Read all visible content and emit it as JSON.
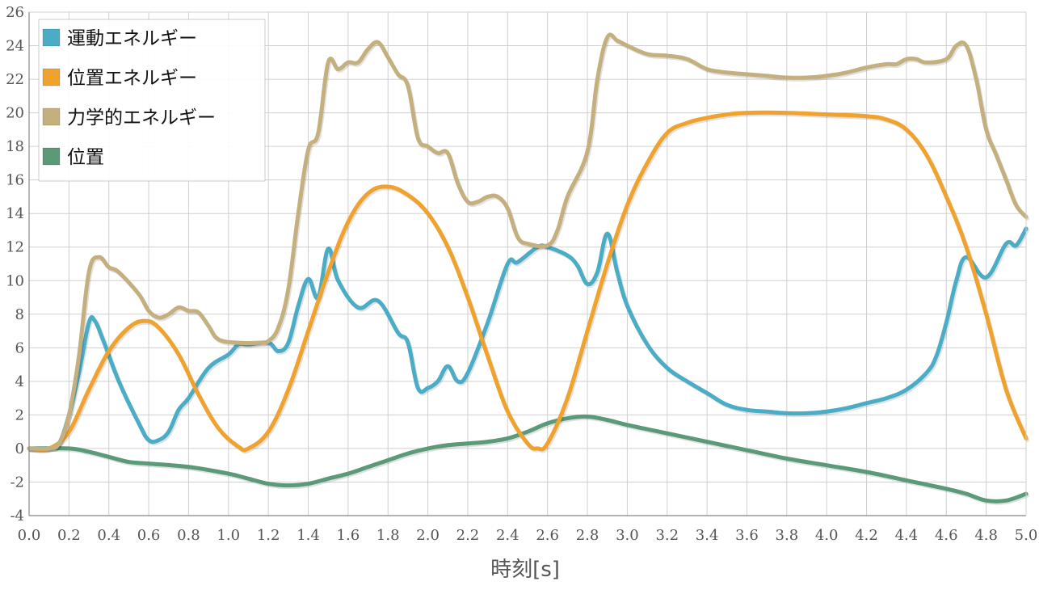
{
  "chart_data": {
    "type": "line",
    "title": "",
    "xlabel": "時刻[s]",
    "ylabel": "",
    "xlim": [
      0,
      5
    ],
    "ylim": [
      -4,
      26
    ],
    "x_ticks": [
      0.0,
      0.2,
      0.4,
      0.6,
      0.8,
      1.0,
      1.2,
      1.4,
      1.6,
      1.8,
      2.0,
      2.2,
      2.4,
      2.6,
      2.8,
      3.0,
      3.2,
      3.4,
      3.6,
      3.8,
      4.0,
      4.2,
      4.4,
      4.6,
      4.8,
      5.0
    ],
    "x_tick_labels": [
      "0.0",
      "0.2",
      "0.4",
      "0.6",
      "0.8",
      "1.0",
      "1.2",
      "1.4",
      "1.6",
      "1.8",
      "2.0",
      "2.2",
      "2.4",
      "2.6",
      "2.8",
      "3.0",
      "3.2",
      "3.4",
      "3.6",
      "3.8",
      "4.0",
      "4.2",
      "4.4",
      "4.6",
      "4.8",
      "5.0"
    ],
    "y_ticks": [
      -4,
      -2,
      0,
      2,
      4,
      6,
      8,
      10,
      12,
      14,
      16,
      18,
      20,
      22,
      24,
      26
    ],
    "y_tick_labels": [
      "-4",
      "-2",
      "0",
      "2",
      "4",
      "6",
      "8",
      "10",
      "12",
      "14",
      "16",
      "18",
      "20",
      "22",
      "24",
      "26"
    ],
    "grid": true,
    "legend_position": "top-left",
    "series": [
      {
        "name": "運動エネルギー",
        "color": "#4bacc6",
        "points": [
          [
            0,
            0
          ],
          [
            0.1,
            0
          ],
          [
            0.15,
            0.3
          ],
          [
            0.2,
            2
          ],
          [
            0.25,
            4.5
          ],
          [
            0.3,
            7.5
          ],
          [
            0.33,
            7.6
          ],
          [
            0.37,
            6.5
          ],
          [
            0.45,
            4
          ],
          [
            0.55,
            1.5
          ],
          [
            0.6,
            0.5
          ],
          [
            0.65,
            0.5
          ],
          [
            0.7,
            1
          ],
          [
            0.75,
            2.3
          ],
          [
            0.8,
            3
          ],
          [
            0.9,
            4.8
          ],
          [
            1.0,
            5.6
          ],
          [
            1.05,
            6.2
          ],
          [
            1.1,
            6.2
          ],
          [
            1.2,
            6.3
          ],
          [
            1.25,
            5.8
          ],
          [
            1.3,
            6.3
          ],
          [
            1.35,
            8.5
          ],
          [
            1.4,
            10.1
          ],
          [
            1.45,
            9
          ],
          [
            1.5,
            11.9
          ],
          [
            1.55,
            10
          ],
          [
            1.65,
            8.4
          ],
          [
            1.75,
            8.8
          ],
          [
            1.85,
            6.9
          ],
          [
            1.9,
            6.3
          ],
          [
            1.95,
            3.6
          ],
          [
            2.0,
            3.6
          ],
          [
            2.05,
            4
          ],
          [
            2.1,
            4.9
          ],
          [
            2.15,
            4
          ],
          [
            2.2,
            4.5
          ],
          [
            2.3,
            7.5
          ],
          [
            2.4,
            11
          ],
          [
            2.45,
            11.1
          ],
          [
            2.55,
            12
          ],
          [
            2.6,
            12
          ],
          [
            2.7,
            11.5
          ],
          [
            2.75,
            10.9
          ],
          [
            2.8,
            9.8
          ],
          [
            2.85,
            10.5
          ],
          [
            2.9,
            12.8
          ],
          [
            2.95,
            10.5
          ],
          [
            3.0,
            8.5
          ],
          [
            3.1,
            6.2
          ],
          [
            3.2,
            4.8
          ],
          [
            3.3,
            4
          ],
          [
            3.4,
            3.3
          ],
          [
            3.5,
            2.6
          ],
          [
            3.6,
            2.3
          ],
          [
            3.7,
            2.2
          ],
          [
            3.8,
            2.1
          ],
          [
            3.9,
            2.1
          ],
          [
            4.0,
            2.2
          ],
          [
            4.1,
            2.4
          ],
          [
            4.2,
            2.7
          ],
          [
            4.3,
            3
          ],
          [
            4.4,
            3.5
          ],
          [
            4.5,
            4.5
          ],
          [
            4.55,
            5.5
          ],
          [
            4.6,
            7.5
          ],
          [
            4.65,
            10
          ],
          [
            4.7,
            11.4
          ],
          [
            4.8,
            10.2
          ],
          [
            4.9,
            12.2
          ],
          [
            4.95,
            12.1
          ],
          [
            5.0,
            13.1
          ]
        ]
      },
      {
        "name": "位置エネルギー",
        "color": "#f0a22e",
        "points": [
          [
            0,
            0
          ],
          [
            0.1,
            0
          ],
          [
            0.2,
            1
          ],
          [
            0.3,
            3.5
          ],
          [
            0.4,
            5.8
          ],
          [
            0.5,
            7.2
          ],
          [
            0.58,
            7.6
          ],
          [
            0.65,
            7.2
          ],
          [
            0.75,
            5.6
          ],
          [
            0.85,
            3.2
          ],
          [
            0.95,
            1.2
          ],
          [
            1.05,
            0.1
          ],
          [
            1.1,
            0
          ],
          [
            1.2,
            1
          ],
          [
            1.3,
            3.5
          ],
          [
            1.4,
            7
          ],
          [
            1.5,
            10.5
          ],
          [
            1.6,
            13.5
          ],
          [
            1.7,
            15.2
          ],
          [
            1.8,
            15.6
          ],
          [
            1.9,
            15.1
          ],
          [
            2.0,
            14
          ],
          [
            2.1,
            12
          ],
          [
            2.2,
            9
          ],
          [
            2.3,
            5.5
          ],
          [
            2.4,
            2.2
          ],
          [
            2.5,
            0.3
          ],
          [
            2.55,
            0
          ],
          [
            2.6,
            0.3
          ],
          [
            2.7,
            3
          ],
          [
            2.8,
            7
          ],
          [
            2.9,
            11
          ],
          [
            3.0,
            14.5
          ],
          [
            3.1,
            17
          ],
          [
            3.2,
            18.8
          ],
          [
            3.3,
            19.4
          ],
          [
            3.4,
            19.7
          ],
          [
            3.5,
            19.9
          ],
          [
            3.6,
            20
          ],
          [
            3.8,
            20
          ],
          [
            4.0,
            19.9
          ],
          [
            4.2,
            19.8
          ],
          [
            4.3,
            19.6
          ],
          [
            4.4,
            19
          ],
          [
            4.5,
            17.5
          ],
          [
            4.6,
            15
          ],
          [
            4.7,
            12
          ],
          [
            4.8,
            8
          ],
          [
            4.9,
            3.5
          ],
          [
            5.0,
            0.6
          ]
        ]
      },
      {
        "name": "力学的エネルギー",
        "color": "#c4b07e",
        "points": [
          [
            0,
            0
          ],
          [
            0.1,
            0
          ],
          [
            0.15,
            0.3
          ],
          [
            0.2,
            2
          ],
          [
            0.25,
            5.5
          ],
          [
            0.3,
            10.5
          ],
          [
            0.35,
            11.4
          ],
          [
            0.4,
            10.8
          ],
          [
            0.45,
            10.5
          ],
          [
            0.55,
            9.2
          ],
          [
            0.6,
            8.2
          ],
          [
            0.65,
            7.8
          ],
          [
            0.7,
            8
          ],
          [
            0.75,
            8.4
          ],
          [
            0.8,
            8.2
          ],
          [
            0.85,
            8.1
          ],
          [
            0.9,
            7.3
          ],
          [
            0.95,
            6.5
          ],
          [
            1.05,
            6.3
          ],
          [
            1.15,
            6.3
          ],
          [
            1.2,
            6.4
          ],
          [
            1.25,
            7.2
          ],
          [
            1.3,
            9.5
          ],
          [
            1.35,
            14
          ],
          [
            1.4,
            17.8
          ],
          [
            1.45,
            18.8
          ],
          [
            1.5,
            23
          ],
          [
            1.55,
            22.6
          ],
          [
            1.6,
            23
          ],
          [
            1.65,
            23
          ],
          [
            1.7,
            23.8
          ],
          [
            1.75,
            24.2
          ],
          [
            1.8,
            23.3
          ],
          [
            1.85,
            22.3
          ],
          [
            1.9,
            21.6
          ],
          [
            1.95,
            18.5
          ],
          [
            2.0,
            18
          ],
          [
            2.05,
            17.6
          ],
          [
            2.1,
            17.6
          ],
          [
            2.15,
            15.8
          ],
          [
            2.2,
            14.7
          ],
          [
            2.25,
            14.7
          ],
          [
            2.3,
            15
          ],
          [
            2.35,
            15
          ],
          [
            2.4,
            14.3
          ],
          [
            2.45,
            12.6
          ],
          [
            2.5,
            12.2
          ],
          [
            2.6,
            12.1
          ],
          [
            2.65,
            13
          ],
          [
            2.7,
            15
          ],
          [
            2.8,
            17.7
          ],
          [
            2.85,
            22
          ],
          [
            2.9,
            24.5
          ],
          [
            2.95,
            24.3
          ],
          [
            3.0,
            24
          ],
          [
            3.1,
            23.5
          ],
          [
            3.2,
            23.4
          ],
          [
            3.3,
            23.2
          ],
          [
            3.4,
            22.6
          ],
          [
            3.5,
            22.4
          ],
          [
            3.6,
            22.3
          ],
          [
            3.7,
            22.2
          ],
          [
            3.8,
            22.1
          ],
          [
            3.9,
            22.1
          ],
          [
            4.0,
            22.2
          ],
          [
            4.1,
            22.4
          ],
          [
            4.2,
            22.7
          ],
          [
            4.3,
            22.9
          ],
          [
            4.35,
            22.9
          ],
          [
            4.4,
            23.2
          ],
          [
            4.45,
            23.2
          ],
          [
            4.5,
            23
          ],
          [
            4.6,
            23.2
          ],
          [
            4.65,
            24
          ],
          [
            4.7,
            24
          ],
          [
            4.75,
            22
          ],
          [
            4.8,
            19
          ],
          [
            4.85,
            17.5
          ],
          [
            4.9,
            16
          ],
          [
            4.95,
            14.5
          ],
          [
            5.0,
            13.8
          ]
        ]
      },
      {
        "name": "位置",
        "color": "#5a9a78",
        "points": [
          [
            0,
            0
          ],
          [
            0.2,
            0
          ],
          [
            0.3,
            -0.2
          ],
          [
            0.4,
            -0.5
          ],
          [
            0.5,
            -0.8
          ],
          [
            0.6,
            -0.9
          ],
          [
            0.8,
            -1.1
          ],
          [
            1.0,
            -1.5
          ],
          [
            1.1,
            -1.8
          ],
          [
            1.2,
            -2.1
          ],
          [
            1.3,
            -2.2
          ],
          [
            1.4,
            -2.1
          ],
          [
            1.5,
            -1.8
          ],
          [
            1.6,
            -1.5
          ],
          [
            1.7,
            -1.1
          ],
          [
            1.8,
            -0.7
          ],
          [
            1.9,
            -0.3
          ],
          [
            2.0,
            0
          ],
          [
            2.1,
            0.2
          ],
          [
            2.2,
            0.3
          ],
          [
            2.3,
            0.4
          ],
          [
            2.4,
            0.6
          ],
          [
            2.5,
            1
          ],
          [
            2.6,
            1.5
          ],
          [
            2.7,
            1.8
          ],
          [
            2.8,
            1.9
          ],
          [
            2.9,
            1.7
          ],
          [
            3.0,
            1.4
          ],
          [
            3.2,
            0.9
          ],
          [
            3.4,
            0.4
          ],
          [
            3.6,
            -0.1
          ],
          [
            3.8,
            -0.6
          ],
          [
            4.0,
            -1
          ],
          [
            4.2,
            -1.4
          ],
          [
            4.4,
            -1.9
          ],
          [
            4.6,
            -2.4
          ],
          [
            4.7,
            -2.7
          ],
          [
            4.8,
            -3.1
          ],
          [
            4.9,
            -3.1
          ],
          [
            5.0,
            -2.7
          ]
        ]
      }
    ]
  }
}
